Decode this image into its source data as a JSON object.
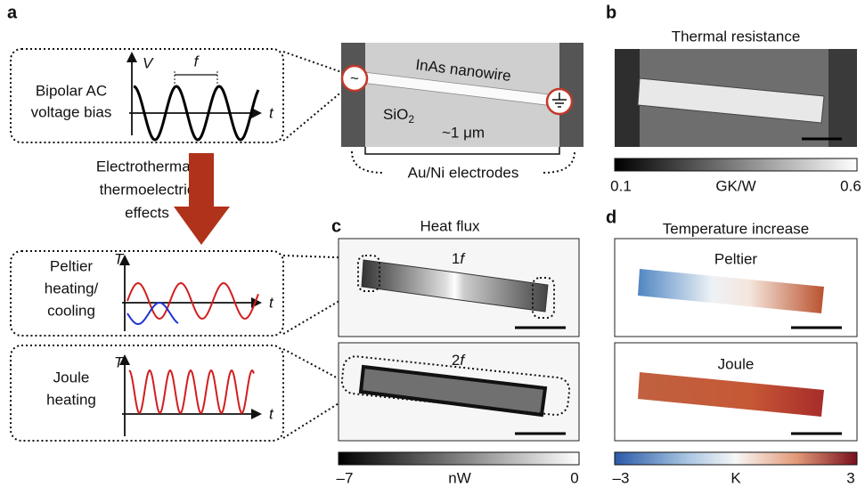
{
  "panels": {
    "a": {
      "label": "a",
      "waveform": {
        "y_axis": "V",
        "x_axis": "t",
        "period": "f",
        "caption": [
          "Bipolar AC",
          "voltage bias"
        ]
      },
      "device": {
        "nanowire": "InAs nanowire",
        "substrate": "SiO",
        "substrate_sub": "2",
        "scale": "~1 μm",
        "electrodes": "Au/Ni electrodes"
      },
      "arrow_caption": [
        "Electrothermal/",
        "thermoelectric",
        "effects"
      ],
      "peltier": {
        "y_axis": "T",
        "x_axis": "t",
        "caption": [
          "Peltier",
          "heating/",
          "cooling"
        ]
      },
      "joule": {
        "y_axis": "T",
        "x_axis": "t",
        "caption": [
          "Joule",
          "heating"
        ]
      }
    },
    "b": {
      "label": "b",
      "title": "Thermal resistance",
      "colorbar": {
        "min": "0.1",
        "unit": "GK/W",
        "max": "0.6"
      }
    },
    "c": {
      "label": "c",
      "title": "Heat flux",
      "images": [
        {
          "harmonic": "1",
          "unit": "f"
        },
        {
          "harmonic": "2",
          "unit": "f"
        }
      ],
      "colorbar": {
        "min": "–7",
        "unit": "nW",
        "max": "0"
      }
    },
    "d": {
      "label": "d",
      "title": "Temperature increase",
      "images": [
        "Peltier",
        "Joule"
      ],
      "colorbar": {
        "min": "–3",
        "unit": "K",
        "max": "3"
      }
    }
  }
}
